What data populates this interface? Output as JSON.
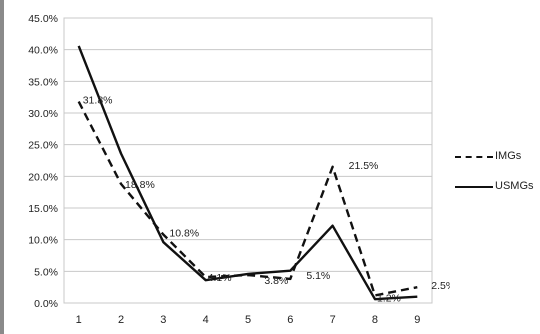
{
  "chart_data": {
    "type": "line",
    "x": [
      1,
      2,
      3,
      4,
      5,
      6,
      7,
      8,
      9
    ],
    "ylim": [
      0,
      45
    ],
    "yticks": [
      "0.0%",
      "5.0%",
      "10.0%",
      "15.0%",
      "20.0%",
      "25.0%",
      "30.0%",
      "35.0%",
      "40.0%",
      "45.0%"
    ],
    "xticks": [
      "1",
      "2",
      "3",
      "4",
      "5",
      "6",
      "7",
      "8",
      "9"
    ],
    "grid": true,
    "legend_position": "right",
    "series": [
      {
        "name": "IMGs",
        "style": "dashed",
        "color": "#111111",
        "values": [
          31.8,
          18.8,
          10.8,
          4.1,
          4.4,
          3.8,
          21.5,
          1.2,
          2.5
        ]
      },
      {
        "name": "USMGs",
        "style": "solid",
        "color": "#111111",
        "values": [
          40.6,
          23.6,
          9.6,
          3.6,
          4.6,
          5.1,
          12.2,
          0.6,
          1.0
        ]
      }
    ],
    "data_labels": [
      {
        "x": 1,
        "text": "31.8%"
      },
      {
        "x": 2,
        "text": "18.8%"
      },
      {
        "x": 3,
        "text": "10.8%"
      },
      {
        "x": 4,
        "text": "4.1%"
      },
      {
        "x": 6,
        "text": "3.8%"
      },
      {
        "x": 6,
        "text": "5.1%"
      },
      {
        "x": 7,
        "text": "21.5%"
      },
      {
        "x": 8,
        "text": "1.2%"
      },
      {
        "x": 9,
        "text": "2.5%"
      }
    ]
  },
  "legend": {
    "items": [
      {
        "label": "IMGs",
        "style": "dashed"
      },
      {
        "label": "USMGs",
        "style": "solid"
      }
    ]
  }
}
